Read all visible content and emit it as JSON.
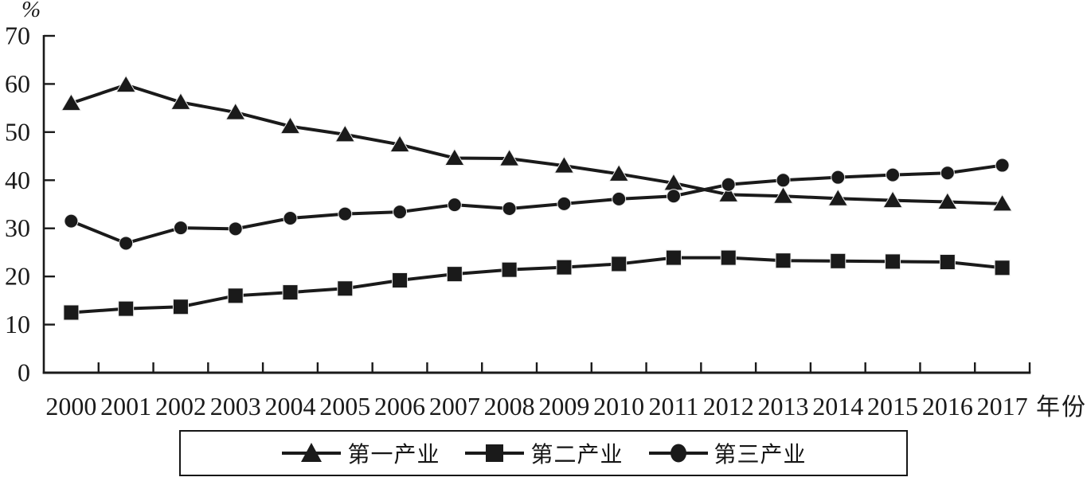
{
  "figure": {
    "background": "#ffffff",
    "ink_color": "#1a1a1a"
  },
  "chart_data": {
    "type": "line",
    "title": "",
    "xlabel": "年份",
    "ylabel": "%",
    "x": [
      2000,
      2001,
      2002,
      2003,
      2004,
      2005,
      2006,
      2007,
      2008,
      2009,
      2010,
      2011,
      2012,
      2013,
      2014,
      2015,
      2016,
      2017
    ],
    "ylim": [
      0,
      70
    ],
    "yticks": [
      0,
      10,
      20,
      30,
      40,
      50,
      60,
      70
    ],
    "grid": false,
    "legend_position": "bottom-boxed",
    "color": "#1a1a1a",
    "series": [
      {
        "name": "第一产业",
        "marker": "triangle",
        "values": [
          56.0,
          59.8,
          56.2,
          54.1,
          51.2,
          49.5,
          47.4,
          44.6,
          44.5,
          43.0,
          41.3,
          39.4,
          37.0,
          36.7,
          36.2,
          35.8,
          35.5,
          35.1
        ]
      },
      {
        "name": "第二产业",
        "marker": "square",
        "values": [
          12.5,
          13.3,
          13.7,
          16.0,
          16.7,
          17.5,
          19.2,
          20.5,
          21.4,
          21.9,
          22.6,
          23.9,
          23.9,
          23.3,
          23.2,
          23.1,
          23.0,
          21.8
        ]
      },
      {
        "name": "第三产业",
        "marker": "circle",
        "values": [
          31.5,
          26.9,
          30.1,
          29.9,
          32.1,
          33.0,
          33.4,
          34.9,
          34.1,
          35.1,
          36.1,
          36.7,
          39.1,
          40.0,
          40.6,
          41.1,
          41.5,
          43.1
        ]
      }
    ]
  }
}
